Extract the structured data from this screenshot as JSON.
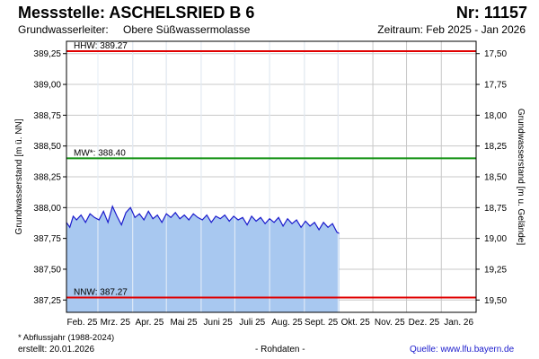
{
  "header": {
    "title": "Messstelle: ASCHELSRIED B 6",
    "station_number": "Nr: 11157",
    "aquifer_label": "Grundwasserleiter:",
    "aquifer_value": "Obere Süßwassermolasse",
    "period": "Zeitraum: Feb 2025 - Jan 2026"
  },
  "footer": {
    "footnote": "* Abflussjahr (1988-2024)",
    "created": "erstellt:  20.01.2026",
    "raw_data_note": "- Rohdaten -",
    "source": "Quelle: www.lfu.bayern.de"
  },
  "colors": {
    "reference_hhw": "#e00000",
    "reference_mw": "#109010",
    "reference_nnw": "#e00000",
    "series_line": "#1a1acc",
    "series_fill": "#a8c8f0",
    "grid": "#c8c8c8"
  },
  "chart_data": {
    "type": "area",
    "ylabel": "Grundwasserstand [m ü. NN]",
    "y2label": "Grundwasserstand [m u. Gelände]",
    "ylim": [
      387.15,
      389.35
    ],
    "y_ticks": [
      "387,25",
      "387,50",
      "387,75",
      "388,00",
      "388,25",
      "388,50",
      "388,75",
      "389,00",
      "389,25"
    ],
    "y_tick_values": [
      387.25,
      387.5,
      387.75,
      388.0,
      388.25,
      388.5,
      388.75,
      389.0,
      389.25
    ],
    "y2_ticks": [
      "19,50",
      "19,25",
      "19,00",
      "18,75",
      "18,50",
      "18,25",
      "18,00",
      "17,75",
      "17,50"
    ],
    "x_ticks": [
      "Feb. 25",
      "Mrz. 25",
      "Apr. 25",
      "Mai 25",
      "Juni 25",
      "Juli 25",
      "Aug. 25",
      "Sept. 25",
      "Okt. 25",
      "Nov. 25",
      "Dez. 25",
      "Jan. 26"
    ],
    "grid": true,
    "reference_lines": [
      {
        "label": "HHW: 389.27",
        "value": 389.27
      },
      {
        "label": "MW*: 388.40",
        "value": 388.4
      },
      {
        "label": "NNW: 387.27",
        "value": 387.27
      }
    ],
    "series": [
      {
        "x": [
          "2025-02-01",
          "2025-02-04",
          "2025-02-07",
          "2025-02-10",
          "2025-02-14",
          "2025-02-18",
          "2025-02-22",
          "2025-02-26",
          "2025-03-02",
          "2025-03-06",
          "2025-03-10",
          "2025-03-14",
          "2025-03-18",
          "2025-03-22",
          "2025-03-26",
          "2025-03-30",
          "2025-04-03",
          "2025-04-07",
          "2025-04-11",
          "2025-04-15",
          "2025-04-19",
          "2025-04-23",
          "2025-04-27",
          "2025-05-01",
          "2025-05-05",
          "2025-05-09",
          "2025-05-13",
          "2025-05-17",
          "2025-05-21",
          "2025-05-25",
          "2025-05-29",
          "2025-06-02",
          "2025-06-06",
          "2025-06-10",
          "2025-06-14",
          "2025-06-18",
          "2025-06-22",
          "2025-06-26",
          "2025-06-30",
          "2025-07-04",
          "2025-07-08",
          "2025-07-12",
          "2025-07-16",
          "2025-07-20",
          "2025-07-24",
          "2025-07-28",
          "2025-08-01",
          "2025-08-05",
          "2025-08-09",
          "2025-08-13",
          "2025-08-17",
          "2025-08-21",
          "2025-08-25",
          "2025-08-29",
          "2025-09-02",
          "2025-09-06",
          "2025-09-10",
          "2025-09-14",
          "2025-09-18",
          "2025-09-22",
          "2025-09-26",
          "2025-09-30",
          "2025-10-02"
        ],
        "values": [
          387.88,
          387.84,
          387.93,
          387.9,
          387.94,
          387.88,
          387.95,
          387.92,
          387.9,
          387.97,
          387.88,
          388.01,
          387.93,
          387.86,
          387.96,
          388.0,
          387.92,
          387.95,
          387.9,
          387.97,
          387.91,
          387.94,
          387.88,
          387.95,
          387.92,
          387.96,
          387.91,
          387.94,
          387.9,
          387.95,
          387.92,
          387.9,
          387.94,
          387.88,
          387.93,
          387.91,
          387.94,
          387.89,
          387.93,
          387.9,
          387.92,
          387.86,
          387.93,
          387.89,
          387.92,
          387.87,
          387.91,
          387.88,
          387.92,
          387.85,
          387.91,
          387.87,
          387.9,
          387.84,
          387.89,
          387.85,
          387.88,
          387.82,
          387.88,
          387.84,
          387.87,
          387.8,
          387.79
        ]
      }
    ]
  }
}
